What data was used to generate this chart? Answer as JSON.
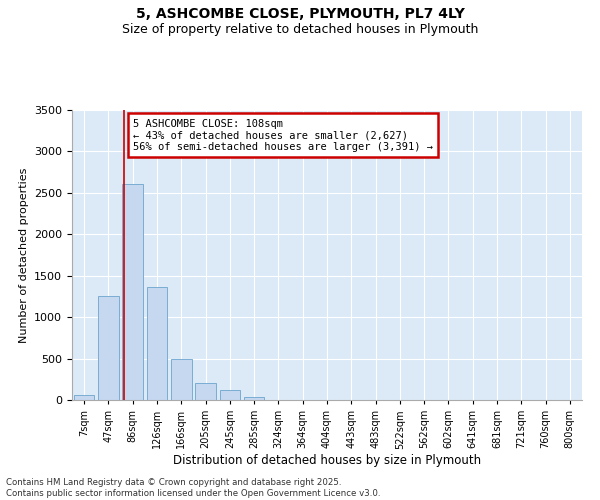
{
  "title_line1": "5, ASHCOMBE CLOSE, PLYMOUTH, PL7 4LY",
  "title_line2": "Size of property relative to detached houses in Plymouth",
  "xlabel": "Distribution of detached houses by size in Plymouth",
  "ylabel": "Number of detached properties",
  "categories": [
    "7sqm",
    "47sqm",
    "86sqm",
    "126sqm",
    "166sqm",
    "205sqm",
    "245sqm",
    "285sqm",
    "324sqm",
    "364sqm",
    "404sqm",
    "443sqm",
    "483sqm",
    "522sqm",
    "562sqm",
    "602sqm",
    "641sqm",
    "681sqm",
    "721sqm",
    "760sqm",
    "800sqm"
  ],
  "values": [
    55,
    1250,
    2610,
    1360,
    500,
    210,
    115,
    35,
    0,
    0,
    0,
    0,
    0,
    0,
    0,
    0,
    0,
    0,
    0,
    0,
    0
  ],
  "bar_color": "#c5d8f0",
  "bar_edge_color": "#7aadd4",
  "figure_bg": "#ffffff",
  "axes_bg": "#dce9f7",
  "grid_color": "#ffffff",
  "red_line_bar_index": 2,
  "annotation_text": "5 ASHCOMBE CLOSE: 108sqm\n← 43% of detached houses are smaller (2,627)\n56% of semi-detached houses are larger (3,391) →",
  "annotation_box_facecolor": "#ffffff",
  "annotation_box_edgecolor": "#cc0000",
  "ylim": [
    0,
    3500
  ],
  "yticks": [
    0,
    500,
    1000,
    1500,
    2000,
    2500,
    3000,
    3500
  ],
  "footer_line1": "Contains HM Land Registry data © Crown copyright and database right 2025.",
  "footer_line2": "Contains public sector information licensed under the Open Government Licence v3.0."
}
